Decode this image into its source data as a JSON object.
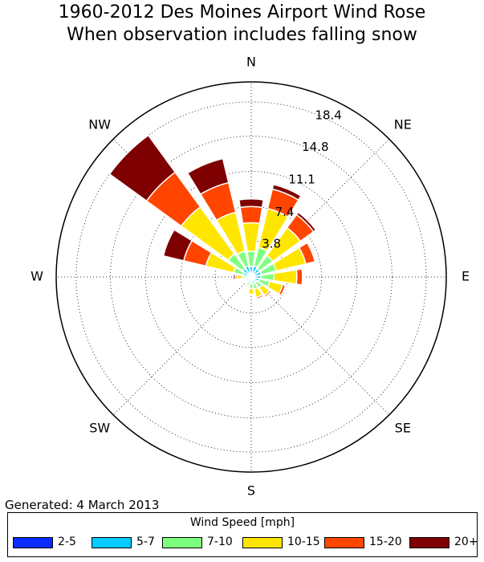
{
  "chart_data": {
    "type": "windrose",
    "title": "1960-2012 Des Moines Airport Wind Rose",
    "subtitle": "When observation includes falling snow",
    "directions": [
      "N",
      "NNE",
      "NE",
      "ENE",
      "E",
      "ESE",
      "SE",
      "SSE",
      "S",
      "SSW",
      "SW",
      "WSW",
      "W",
      "WNW",
      "NW",
      "NNW"
    ],
    "compass_labels": [
      "N",
      "NE",
      "E",
      "SE",
      "S",
      "SW",
      "W",
      "NW"
    ],
    "radial_ticks": [
      3.8,
      7.4,
      11.1,
      14.8,
      18.4
    ],
    "radial_tick_labels": [
      "3.8",
      "7.4",
      "11.1",
      "14.8",
      "18.4"
    ],
    "r_max": 20.5,
    "series": [
      {
        "name": "2-5",
        "color": "#0a2bff",
        "values": [
          0.3,
          0.3,
          0.3,
          0.3,
          0.3,
          0.3,
          0.3,
          0.3,
          0.3,
          0.3,
          0.2,
          0.2,
          0.3,
          0.3,
          0.3,
          0.3
        ]
      },
      {
        "name": "5-7",
        "color": "#00ccff",
        "values": [
          0.8,
          0.9,
          0.8,
          0.8,
          0.7,
          0.6,
          0.4,
          0.4,
          0.4,
          0.3,
          0.2,
          0.2,
          0.3,
          0.6,
          0.8,
          0.9
        ]
      },
      {
        "name": "7-10",
        "color": "#7fff7f",
        "values": [
          1.6,
          2.0,
          1.7,
          1.6,
          1.4,
          1.1,
          0.7,
          0.6,
          0.5,
          0.3,
          0.2,
          0.2,
          0.3,
          1.0,
          1.9,
          1.6
        ]
      },
      {
        "name": "10-15",
        "color": "#ffe600",
        "values": [
          3.0,
          4.2,
          3.6,
          3.2,
          2.4,
          1.4,
          1.0,
          0.9,
          0.6,
          0.2,
          0.1,
          0.1,
          0.6,
          3.0,
          6.1,
          4.2
        ]
      },
      {
        "name": "15-20",
        "color": "#ff4500",
        "values": [
          1.7,
          2.1,
          1.7,
          1.0,
          0.6,
          0.3,
          0.2,
          0.2,
          0.1,
          0.05,
          0.05,
          0.05,
          0.2,
          2.4,
          4.5,
          3.2
        ]
      },
      {
        "name": "20+",
        "color": "#7f0000",
        "values": [
          0.8,
          0.5,
          0.3,
          0.1,
          0.05,
          0.05,
          0.05,
          0.05,
          0.05,
          0.05,
          0.05,
          0.05,
          0.2,
          2.2,
          4.8,
          2.6
        ]
      }
    ],
    "grid": true
  },
  "footer": {
    "generated": "Generated: 4 March 2013"
  },
  "legend": {
    "title": "Wind Speed [mph]"
  }
}
